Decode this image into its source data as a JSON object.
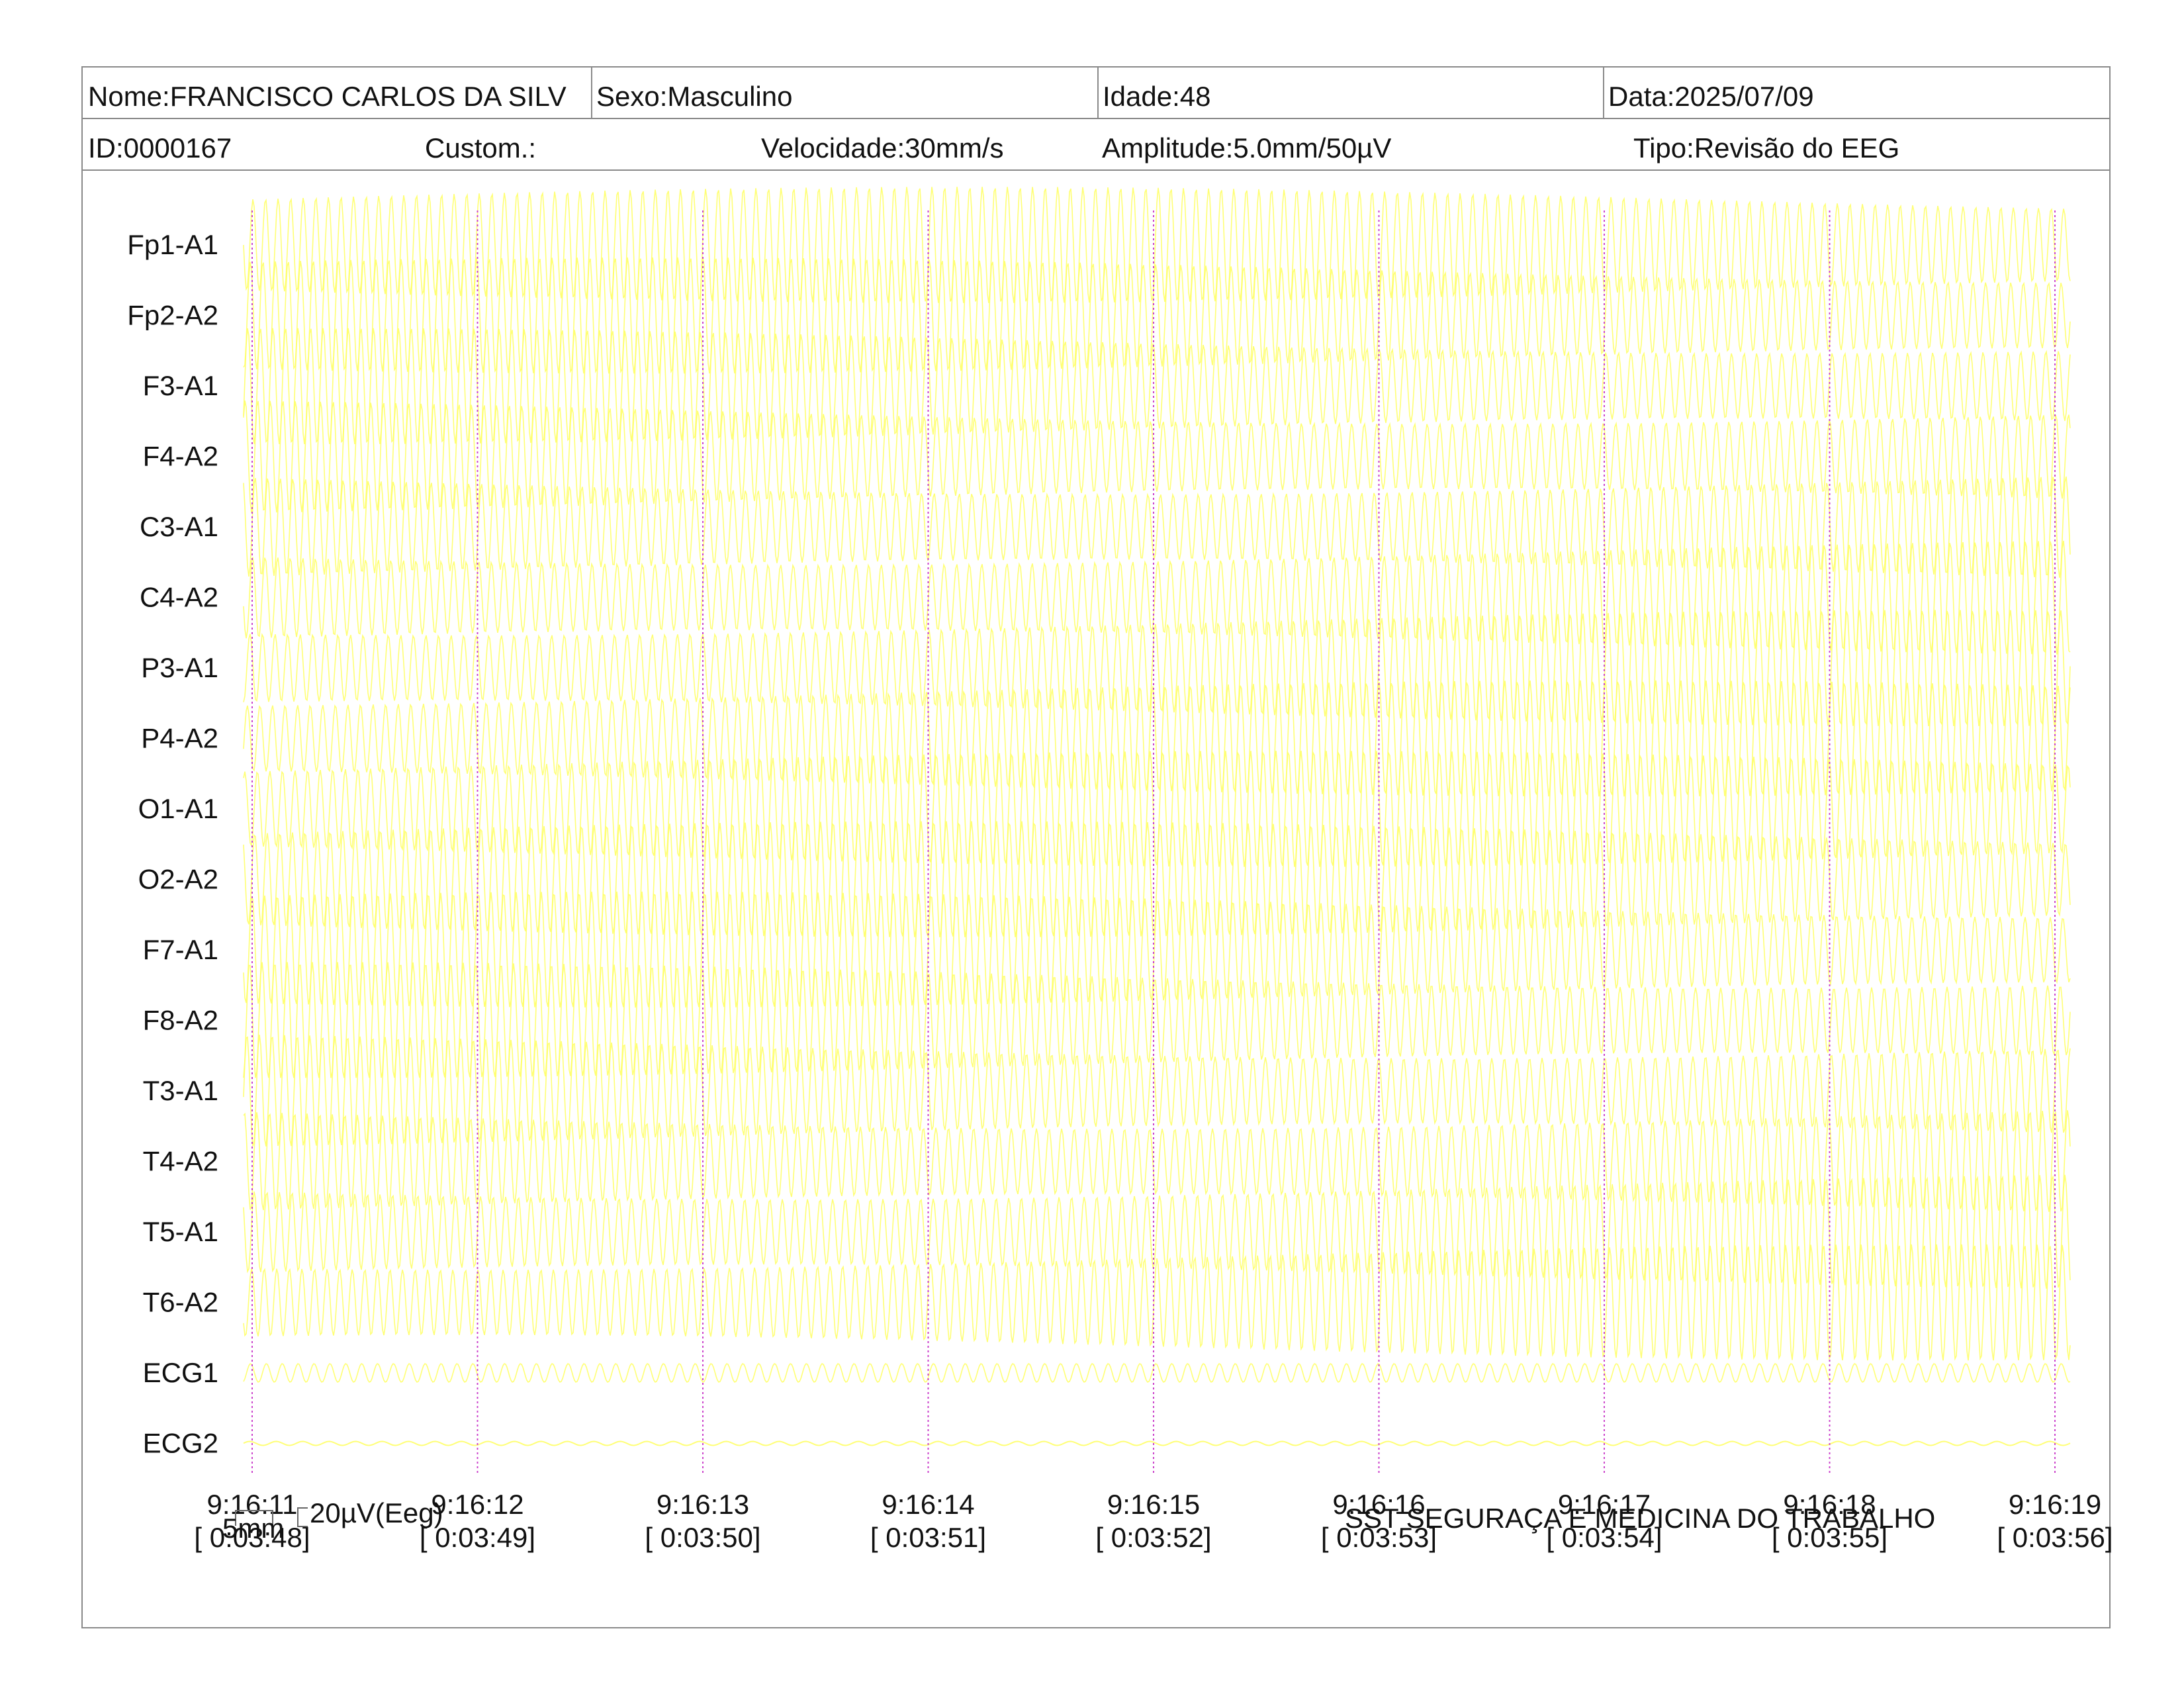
{
  "header": {
    "nome": "Nome:FRANCISCO CARLOS DA SILV",
    "sexo": "Sexo:Masculino",
    "idade": "Idade:48",
    "data": "Data:2025/07/09",
    "id": "ID:0000167",
    "custom": "Custom.:",
    "velocidade": "Velocidade:30mm/s",
    "amplitude": "Amplitude:5.0mm/50µV",
    "tipo": "Tipo:Revisão do EEG"
  },
  "channels": [
    "Fp1-A1",
    "Fp2-A2",
    "F3-A1",
    "F4-A2",
    "C3-A1",
    "C4-A2",
    "P3-A1",
    "P4-A2",
    "O1-A1",
    "O2-A2",
    "F7-A1",
    "F8-A2",
    "T3-A1",
    "T4-A2",
    "T5-A1",
    "T6-A2",
    "ECG1",
    "ECG2"
  ],
  "time_marks": [
    {
      "clock": "9:16:11",
      "elapsed": "[ 0:03:48]"
    },
    {
      "clock": "9:16:12",
      "elapsed": "[ 0:03:49]"
    },
    {
      "clock": "9:16:13",
      "elapsed": "[ 0:03:50]"
    },
    {
      "clock": "9:16:14",
      "elapsed": "[ 0:03:51]"
    },
    {
      "clock": "9:16:15",
      "elapsed": "[ 0:03:52]"
    },
    {
      "clock": "9:16:16",
      "elapsed": "[ 0:03:53]"
    },
    {
      "clock": "9:16:17",
      "elapsed": "[ 0:03:54]"
    },
    {
      "clock": "9:16:18",
      "elapsed": "[ 0:03:55]"
    },
    {
      "clock": "9:16:19",
      "elapsed": "[ 0:03:56]"
    }
  ],
  "scale": {
    "time": "5mm",
    "amplitude": "20µV(Eeg)"
  },
  "footer": {
    "company": "SST SEGURAÇA E MEDICINA DO TRABALHO"
  },
  "colors": {
    "trace": "#ffff66",
    "marker": "#cc44cc",
    "border": "#8a8a8a"
  }
}
